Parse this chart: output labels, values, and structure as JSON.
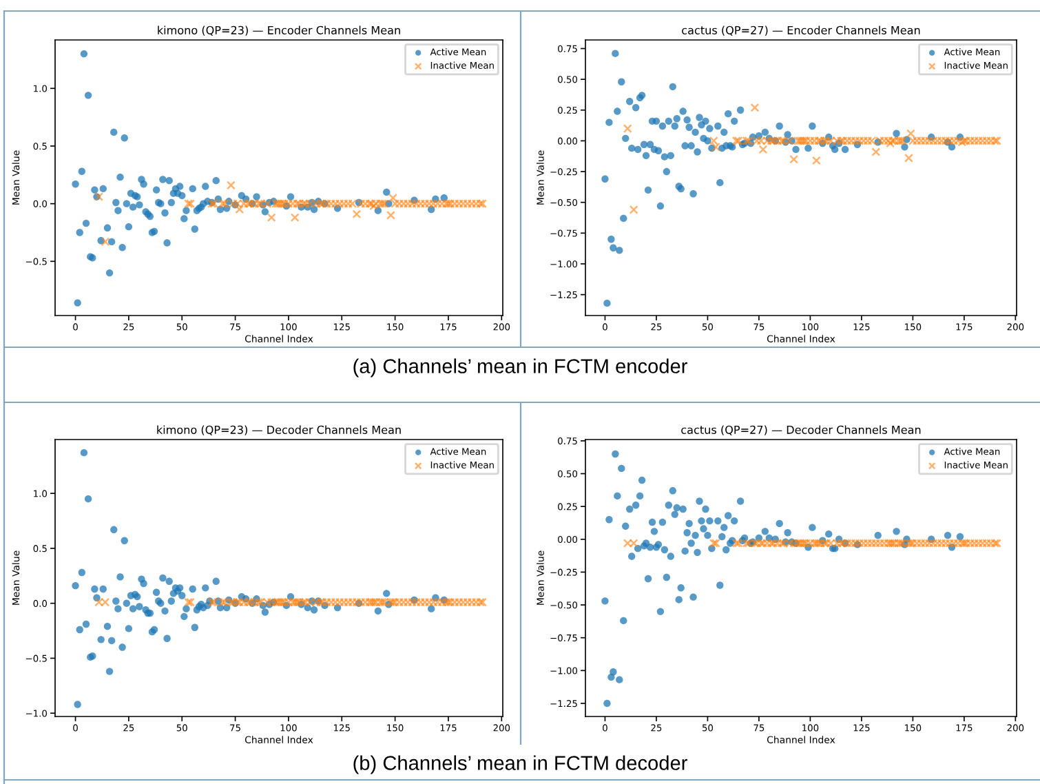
{
  "chart_data": [
    {
      "type": "scatter",
      "title": "kimono (QP=23) — Encoder Channels Mean",
      "xlabel": "Channel Index",
      "ylabel": "Mean Value",
      "annotations": [
        "(a) Channels’ mean in FCTM encoder"
      ],
      "legend": "top right",
      "grid": false,
      "xlim": [
        -9.55,
        200.55
      ],
      "xticks": [
        0,
        25,
        50,
        75,
        100,
        125,
        150,
        175,
        200
      ],
      "ylim": [
        -0.97,
        1.42
      ],
      "yticks": [
        {
          "value": -0.5,
          "label": "−0.5"
        },
        {
          "value": 0,
          "label": "0.0"
        },
        {
          "value": 0.5,
          "label": "0.5"
        },
        {
          "value": 1,
          "label": "1.0"
        }
      ],
      "series": [
        {
          "name": "Active Mean",
          "color": "#1f77b4",
          "marker": "circle",
          "x": [
            0,
            1,
            2,
            3,
            4,
            5,
            6,
            7,
            8,
            9,
            10,
            12,
            13,
            15,
            16,
            17,
            18,
            19,
            20,
            21,
            22,
            23,
            24,
            25,
            26,
            27,
            28,
            29,
            30,
            31,
            32,
            33,
            34,
            35,
            36,
            37,
            38,
            39,
            40,
            41,
            42,
            43,
            44,
            45,
            46,
            47,
            48,
            49,
            50,
            51,
            52,
            55,
            56,
            57,
            58,
            59,
            60,
            61,
            62,
            64,
            66,
            67,
            68,
            71,
            72,
            75,
            78,
            80,
            83,
            85,
            88,
            89,
            91,
            93,
            99,
            101,
            106,
            109,
            111,
            112,
            114,
            117,
            123,
            133,
            142,
            146,
            147,
            159,
            167,
            169,
            173
          ],
          "values": [
            0.17,
            -0.86,
            -0.25,
            0.28,
            1.3,
            -0.17,
            0.94,
            -0.46,
            -0.47,
            0.12,
            0.06,
            -0.32,
            0.13,
            -0.21,
            -0.6,
            -0.33,
            0.62,
            0.01,
            -0.06,
            0.23,
            -0.38,
            0.57,
            0.0,
            -0.2,
            0.09,
            -0.03,
            0.07,
            0.06,
            -0.01,
            0.21,
            0.17,
            -0.07,
            -0.09,
            -0.11,
            -0.25,
            -0.24,
            0.12,
            0.01,
            0.0,
            0.21,
            -0.08,
            -0.34,
            0.2,
            0.01,
            0.09,
            0.13,
            0.09,
            0.15,
            0.07,
            -0.13,
            -0.06,
            0.13,
            -0.22,
            -0.06,
            -0.04,
            -0.03,
            0.0,
            0.15,
            0.02,
            0.01,
            0.2,
            0.04,
            -0.05,
            -0.04,
            0.02,
            -0.01,
            0.07,
            0.04,
            0.0,
            0.06,
            -0.01,
            -0.07,
            0.01,
            0.02,
            -0.02,
            0.06,
            -0.03,
            -0.03,
            0.01,
            -0.05,
            0.02,
            0.0,
            -0.04,
            0.01,
            -0.06,
            0.1,
            0.0,
            0.03,
            -0.05,
            0.04,
            0.05
          ]
        },
        {
          "name": "Inactive Mean",
          "color": "#ff7f0e",
          "marker": "cross",
          "x": [
            11,
            14,
            53,
            54,
            64,
            65,
            69,
            70,
            73,
            74,
            76,
            77,
            79,
            81,
            82,
            84,
            86,
            87,
            90,
            92,
            94,
            95,
            96,
            97,
            98,
            100,
            102,
            103,
            104,
            105,
            107,
            108,
            110,
            113,
            115,
            116,
            118,
            120,
            122,
            124,
            126,
            128,
            130,
            132,
            134,
            136,
            138,
            139,
            140,
            141,
            143,
            144,
            145,
            148,
            149,
            150,
            152,
            154,
            156,
            158,
            160,
            162,
            164,
            166,
            168,
            170,
            172,
            174,
            175,
            176,
            178,
            180,
            182,
            184,
            186,
            188,
            190,
            191
          ],
          "values": [
            0.06,
            -0.33,
            0,
            0,
            0,
            0,
            0,
            0,
            0.16,
            0,
            0,
            -0.05,
            0,
            0,
            0,
            0,
            0,
            0,
            0,
            -0.12,
            0,
            0,
            0,
            0,
            0,
            0,
            0,
            -0.12,
            0,
            0,
            0,
            0,
            0,
            0,
            0,
            0,
            0,
            0,
            0,
            0,
            0,
            0,
            0,
            -0.09,
            0,
            0,
            0,
            0,
            -0.02,
            0,
            0,
            0,
            0,
            -0.1,
            0.05,
            0,
            0,
            0,
            0,
            0,
            0,
            0,
            0,
            0,
            0,
            0,
            0,
            0,
            0,
            0,
            0,
            0,
            0,
            0,
            0,
            0,
            0,
            0
          ]
        }
      ]
    },
    {
      "type": "scatter",
      "title": "cactus (QP=27) — Encoder Channels Mean",
      "xlabel": "Channel Index",
      "ylabel": "Mean Value",
      "legend": "top right",
      "grid": false,
      "xlim": [
        -9.55,
        200.55
      ],
      "xticks": [
        0,
        25,
        50,
        75,
        100,
        125,
        150,
        175,
        200
      ],
      "ylim": [
        -1.42,
        0.82
      ],
      "yticks": [
        {
          "value": -1.25,
          "label": "−1.25"
        },
        {
          "value": -1,
          "label": "−1.00"
        },
        {
          "value": -0.75,
          "label": "−0.75"
        },
        {
          "value": -0.5,
          "label": "−0.50"
        },
        {
          "value": -0.25,
          "label": "−0.25"
        },
        {
          "value": 0,
          "label": "0.00"
        },
        {
          "value": 0.25,
          "label": "0.25"
        },
        {
          "value": 0.5,
          "label": "0.50"
        },
        {
          "value": 0.75,
          "label": "0.75"
        }
      ],
      "series": [
        {
          "name": "Active Mean",
          "color": "#1f77b4",
          "marker": "circle",
          "x": [
            0,
            1,
            2,
            3,
            4,
            5,
            6,
            7,
            8,
            9,
            10,
            12,
            13,
            15,
            16,
            17,
            18,
            19,
            20,
            21,
            22,
            23,
            24,
            25,
            26,
            27,
            28,
            29,
            30,
            31,
            32,
            33,
            34,
            35,
            36,
            37,
            38,
            39,
            40,
            41,
            42,
            43,
            44,
            45,
            46,
            47,
            48,
            49,
            50,
            51,
            52,
            55,
            56,
            57,
            58,
            59,
            60,
            61,
            62,
            63,
            66,
            67,
            68,
            71,
            72,
            75,
            78,
            80,
            83,
            85,
            88,
            89,
            91,
            93,
            99,
            101,
            106,
            109,
            111,
            112,
            114,
            117,
            123,
            133,
            142,
            146,
            147,
            159,
            167,
            169,
            173
          ],
          "values": [
            -0.31,
            -1.32,
            0.15,
            -0.8,
            -0.87,
            0.71,
            0.24,
            -0.89,
            0.48,
            -0.63,
            0.02,
            0.32,
            -0.06,
            0.27,
            -0.07,
            0.35,
            0.37,
            -0.03,
            -0.12,
            -0.4,
            -0.03,
            0.16,
            -0.07,
            0.16,
            -0.08,
            -0.53,
            0.12,
            -0.13,
            -0.25,
            0.16,
            -0.12,
            0.44,
            0.12,
            0.18,
            -0.37,
            -0.39,
            0.24,
            -0.04,
            0.17,
            0.11,
            -0.04,
            -0.43,
            0.07,
            -0.09,
            0.19,
            0.13,
            0.02,
            0.16,
            0.0,
            0.1,
            -0.06,
            0.12,
            -0.34,
            -0.06,
            0.07,
            -0.04,
            0.22,
            -0.04,
            -0.05,
            0.16,
            0.25,
            -0.03,
            -0.02,
            -0.02,
            0.03,
            0.04,
            0.07,
            0.02,
            0.0,
            0.12,
            -0.01,
            0.05,
            0.0,
            -0.07,
            -0.06,
            0.12,
            -0.02,
            0.03,
            -0.04,
            -0.07,
            -0.02,
            -0.07,
            -0.03,
            -0.01,
            0.06,
            -0.05,
            0.01,
            0.03,
            -0.01,
            -0.05,
            0.03
          ]
        },
        {
          "name": "Inactive Mean",
          "color": "#ff7f0e",
          "marker": "cross",
          "x": [
            11,
            14,
            53,
            54,
            64,
            65,
            69,
            70,
            73,
            74,
            76,
            77,
            79,
            81,
            82,
            84,
            86,
            87,
            90,
            92,
            94,
            95,
            96,
            97,
            98,
            100,
            102,
            103,
            104,
            105,
            107,
            108,
            110,
            113,
            115,
            116,
            118,
            120,
            122,
            124,
            126,
            128,
            130,
            132,
            134,
            136,
            138,
            139,
            140,
            141,
            143,
            144,
            145,
            148,
            149,
            150,
            152,
            154,
            156,
            158,
            160,
            162,
            164,
            166,
            168,
            170,
            172,
            174,
            175,
            176,
            178,
            180,
            182,
            184,
            186,
            188,
            190,
            191
          ],
          "values": [
            0.1,
            -0.56,
            0,
            -0.05,
            0,
            0,
            0,
            0,
            0.27,
            0,
            0,
            -0.07,
            0,
            0,
            0,
            0,
            0,
            0,
            0,
            -0.15,
            0,
            0,
            0,
            0,
            0,
            0,
            0,
            -0.16,
            0,
            0,
            0,
            0,
            0,
            0,
            0,
            0,
            0,
            0,
            0,
            0,
            0,
            0,
            0,
            -0.09,
            0,
            0,
            0,
            -0.02,
            0,
            0,
            0,
            0,
            0,
            -0.14,
            0.06,
            0,
            0,
            0,
            0,
            0,
            0,
            0,
            0,
            0,
            0,
            0,
            0,
            -0.01,
            0,
            0,
            0,
            0,
            0,
            0,
            0,
            0,
            0,
            0
          ]
        }
      ]
    },
    {
      "type": "scatter",
      "title": "kimono (QP=23) — Decoder Channels Mean",
      "xlabel": "Channel Index",
      "ylabel": "Mean Value",
      "annotations": [
        "(b) Channels’ mean in FCTM decoder"
      ],
      "legend": "top right",
      "grid": false,
      "xlim": [
        -9.55,
        200.55
      ],
      "xticks": [
        0,
        25,
        50,
        75,
        100,
        125,
        150,
        175,
        200
      ],
      "ylim": [
        -1.03,
        1.49
      ],
      "yticks": [
        {
          "value": -1,
          "label": "−1.0"
        },
        {
          "value": -0.5,
          "label": "−0.5"
        },
        {
          "value": 0,
          "label": "0.0"
        },
        {
          "value": 0.5,
          "label": "0.5"
        },
        {
          "value": 1,
          "label": "1.0"
        }
      ],
      "series": [
        {
          "name": "Active Mean",
          "color": "#1f77b4",
          "marker": "circle",
          "x": [
            0,
            1,
            2,
            3,
            4,
            5,
            6,
            7,
            8,
            9,
            10,
            12,
            13,
            15,
            16,
            17,
            18,
            19,
            20,
            21,
            22,
            23,
            24,
            25,
            26,
            27,
            28,
            29,
            30,
            31,
            32,
            33,
            34,
            35,
            36,
            37,
            38,
            39,
            40,
            41,
            42,
            43,
            44,
            45,
            46,
            47,
            48,
            49,
            50,
            51,
            52,
            55,
            56,
            57,
            58,
            59,
            60,
            61,
            62,
            63,
            66,
            67,
            68,
            71,
            72,
            75,
            78,
            80,
            83,
            85,
            88,
            89,
            91,
            93,
            99,
            101,
            106,
            109,
            111,
            112,
            114,
            117,
            123,
            133,
            142,
            146,
            147,
            159,
            167,
            169,
            173
          ],
          "values": [
            0.16,
            -0.92,
            -0.24,
            0.28,
            1.37,
            -0.19,
            0.95,
            -0.49,
            -0.48,
            0.13,
            0.05,
            -0.33,
            0.13,
            -0.21,
            -0.62,
            -0.34,
            0.67,
            0.02,
            -0.05,
            0.24,
            -0.4,
            0.57,
            0.0,
            -0.23,
            0.07,
            -0.05,
            0.08,
            0.06,
            -0.03,
            0.22,
            0.18,
            -0.06,
            -0.09,
            -0.09,
            -0.26,
            -0.24,
            0.1,
            0.02,
            0.0,
            0.23,
            -0.07,
            -0.32,
            0.2,
            0.02,
            0.09,
            0.14,
            0.11,
            0.14,
            0.07,
            -0.12,
            -0.05,
            0.13,
            -0.22,
            -0.06,
            -0.03,
            -0.01,
            -0.04,
            0.14,
            -0.02,
            0.02,
            0.2,
            0.02,
            -0.04,
            -0.04,
            0.03,
            0.0,
            0.06,
            0.04,
            0.0,
            0.04,
            -0.02,
            -0.08,
            -0.01,
            0.01,
            -0.02,
            0.06,
            -0.01,
            -0.04,
            0.02,
            -0.06,
            0.02,
            -0.02,
            -0.04,
            0.0,
            -0.07,
            0.09,
            -0.01,
            0.03,
            -0.05,
            0.05,
            0.03
          ]
        },
        {
          "name": "Inactive Mean",
          "color": "#ff7f0e",
          "marker": "cross",
          "x": [
            11,
            14,
            53,
            54,
            64,
            65,
            69,
            70,
            73,
            74,
            76,
            77,
            79,
            81,
            82,
            84,
            86,
            87,
            90,
            92,
            94,
            95,
            96,
            97,
            98,
            100,
            102,
            103,
            104,
            105,
            107,
            108,
            110,
            113,
            115,
            116,
            118,
            120,
            122,
            124,
            126,
            128,
            130,
            132,
            134,
            136,
            138,
            139,
            140,
            141,
            143,
            144,
            145,
            148,
            149,
            150,
            152,
            154,
            156,
            158,
            160,
            162,
            164,
            166,
            168,
            170,
            172,
            174,
            175,
            176,
            178,
            180,
            182,
            184,
            186,
            188,
            190,
            191
          ],
          "values": [
            0.01,
            0.01,
            0.01,
            0.01,
            0.01,
            0.01,
            0.01,
            0.01,
            0.01,
            0.01,
            0.01,
            0.01,
            0.01,
            0.01,
            0.01,
            0.01,
            0.01,
            0.01,
            0.01,
            0.01,
            0.01,
            0.01,
            0.01,
            0.01,
            0.01,
            0.01,
            0.01,
            0.01,
            0.01,
            0.01,
            0.01,
            0.01,
            0.01,
            0.01,
            0.01,
            0.01,
            0.01,
            0.01,
            0.01,
            0.01,
            0.01,
            0.01,
            0.01,
            0.01,
            0.01,
            0.01,
            0.01,
            0.01,
            0.01,
            0.01,
            0.01,
            0.01,
            0.01,
            0.01,
            0.01,
            0.01,
            0.01,
            0.01,
            0.01,
            0.01,
            0.01,
            0.01,
            0.01,
            0.01,
            0.01,
            0.01,
            0.01,
            0.01,
            0.01,
            0.01,
            0.01,
            0.01,
            0.01,
            0.01,
            0.01,
            0.01,
            0.01,
            0.01
          ]
        }
      ]
    },
    {
      "type": "scatter",
      "title": "cactus (QP=27) — Decoder Channels Mean",
      "xlabel": "Channel Index",
      "ylabel": "Mean Value",
      "legend": "top right",
      "grid": false,
      "xlim": [
        -9.55,
        200.55
      ],
      "xticks": [
        0,
        25,
        50,
        75,
        100,
        125,
        150,
        175,
        200
      ],
      "ylim": [
        -1.35,
        0.76
      ],
      "yticks": [
        {
          "value": -1.25,
          "label": "−1.25"
        },
        {
          "value": -1,
          "label": "−1.00"
        },
        {
          "value": -0.75,
          "label": "−0.75"
        },
        {
          "value": -0.5,
          "label": "−0.50"
        },
        {
          "value": -0.25,
          "label": "−0.25"
        },
        {
          "value": 0,
          "label": "0.00"
        },
        {
          "value": 0.25,
          "label": "0.25"
        },
        {
          "value": 0.5,
          "label": "0.50"
        },
        {
          "value": 0.75,
          "label": "0.75"
        }
      ],
      "series": [
        {
          "name": "Active Mean",
          "color": "#1f77b4",
          "marker": "circle",
          "x": [
            0,
            1,
            2,
            3,
            4,
            5,
            6,
            7,
            8,
            9,
            10,
            12,
            13,
            15,
            16,
            17,
            18,
            19,
            20,
            21,
            22,
            23,
            24,
            25,
            26,
            27,
            28,
            29,
            30,
            31,
            32,
            33,
            34,
            35,
            36,
            37,
            38,
            39,
            40,
            41,
            42,
            43,
            44,
            45,
            46,
            47,
            48,
            49,
            50,
            51,
            52,
            55,
            56,
            57,
            58,
            59,
            60,
            61,
            62,
            63,
            66,
            67,
            68,
            71,
            72,
            75,
            78,
            80,
            83,
            85,
            88,
            89,
            91,
            93,
            99,
            101,
            106,
            109,
            111,
            112,
            114,
            117,
            123,
            133,
            142,
            146,
            147,
            159,
            167,
            169,
            173
          ],
          "values": [
            -0.47,
            -1.25,
            0.15,
            -1.05,
            -1.01,
            0.65,
            0.33,
            -1.07,
            0.54,
            -0.62,
            0.1,
            0.23,
            -0.13,
            0.26,
            -0.07,
            0.33,
            0.45,
            -0.05,
            -0.03,
            -0.3,
            -0.06,
            0.13,
            0.06,
            -0.06,
            -0.04,
            -0.55,
            0.13,
            -0.08,
            -0.29,
            0.26,
            -0.13,
            0.37,
            0.19,
            0.24,
            -0.46,
            -0.37,
            0.23,
            -0.09,
            0.05,
            0.12,
            -0.03,
            -0.44,
            0.03,
            -0.1,
            0.29,
            0.14,
            0.08,
            0.23,
            0.03,
            0.14,
            -0.07,
            0.14,
            -0.35,
            0.02,
            0.09,
            -0.08,
            0.18,
            -0.03,
            -0.01,
            0.14,
            0.29,
            -0.01,
            0.01,
            -0.03,
            -0.02,
            0.01,
            0.06,
            0.01,
            0.0,
            0.12,
            -0.02,
            0.05,
            -0.02,
            -0.03,
            -0.06,
            0.09,
            -0.01,
            0.04,
            -0.07,
            -0.07,
            0.0,
            -0.03,
            -0.04,
            0.03,
            0.06,
            -0.04,
            0.0,
            0.0,
            0.03,
            -0.06,
            0.02
          ]
        },
        {
          "name": "Inactive Mean",
          "color": "#ff7f0e",
          "marker": "cross",
          "x": [
            11,
            14,
            53,
            54,
            64,
            65,
            69,
            70,
            73,
            74,
            76,
            77,
            79,
            81,
            82,
            84,
            86,
            87,
            90,
            92,
            94,
            95,
            96,
            97,
            98,
            100,
            102,
            103,
            104,
            105,
            107,
            108,
            110,
            113,
            115,
            116,
            118,
            120,
            122,
            124,
            126,
            128,
            130,
            132,
            134,
            136,
            138,
            139,
            140,
            141,
            143,
            144,
            145,
            148,
            149,
            150,
            152,
            154,
            156,
            158,
            160,
            162,
            164,
            166,
            168,
            170,
            172,
            174,
            175,
            176,
            178,
            180,
            182,
            184,
            186,
            188,
            190,
            191
          ],
          "values": [
            -0.03,
            -0.03,
            -0.03,
            -0.03,
            -0.03,
            -0.03,
            -0.03,
            -0.03,
            -0.03,
            -0.03,
            -0.03,
            -0.03,
            -0.03,
            -0.03,
            -0.03,
            -0.03,
            -0.03,
            -0.03,
            -0.03,
            -0.03,
            -0.03,
            -0.03,
            -0.03,
            -0.03,
            -0.03,
            -0.03,
            -0.03,
            -0.03,
            -0.03,
            -0.03,
            -0.03,
            -0.03,
            -0.03,
            -0.03,
            -0.03,
            -0.03,
            -0.03,
            -0.03,
            -0.03,
            -0.03,
            -0.03,
            -0.03,
            -0.03,
            -0.03,
            -0.03,
            -0.03,
            -0.03,
            -0.03,
            -0.03,
            -0.03,
            -0.03,
            -0.03,
            -0.03,
            -0.03,
            -0.03,
            -0.03,
            -0.03,
            -0.03,
            -0.03,
            -0.03,
            -0.03,
            -0.03,
            -0.03,
            -0.03,
            -0.03,
            -0.03,
            -0.03,
            -0.03,
            -0.03,
            -0.03,
            -0.03,
            -0.03,
            -0.03,
            -0.03,
            -0.03,
            -0.03,
            -0.03,
            -0.03
          ]
        }
      ]
    }
  ]
}
